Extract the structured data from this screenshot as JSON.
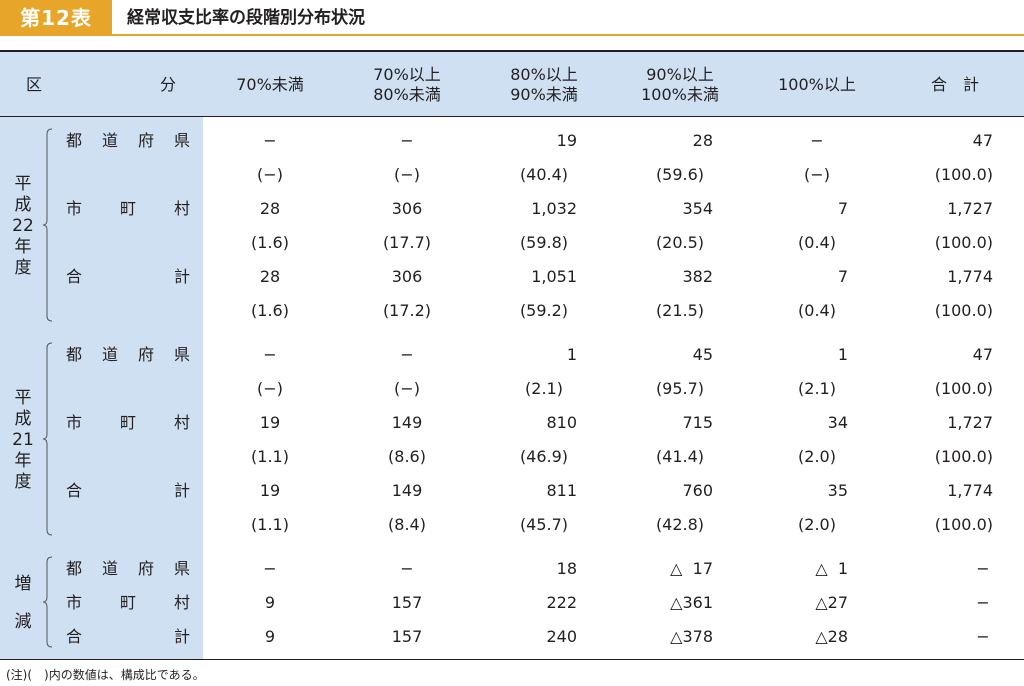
{
  "title": {
    "badge": "第12表",
    "text": "経常収支比率の段階別分布状況"
  },
  "header": {
    "ku": "区",
    "bun": "分",
    "columns": [
      [
        "70%未満"
      ],
      [
        "70%以上",
        "80%未満"
      ],
      [
        "80%以上",
        "90%未満"
      ],
      [
        "90%以上",
        "100%未満"
      ],
      [
        "100%以上"
      ],
      [
        "合　計"
      ]
    ]
  },
  "groups": [
    {
      "label": [
        "平",
        "成",
        "22",
        "年",
        "度"
      ],
      "rows": [
        {
          "label": [
            "都",
            "道",
            "府",
            "県"
          ],
          "values": [
            "−",
            "−",
            "19",
            "28",
            "−",
            "47"
          ]
        },
        {
          "label": [],
          "values": [
            "(−)",
            "(−)",
            "(40.4)",
            "(59.6)",
            "(−)",
            "(100.0)"
          ]
        },
        {
          "label": [
            "市",
            "町",
            "村"
          ],
          "values": [
            "28",
            "306",
            "1,032",
            "354",
            "7",
            "1,727"
          ]
        },
        {
          "label": [],
          "values": [
            "(1.6)",
            "(17.7)",
            "(59.8)",
            "(20.5)",
            "(0.4)",
            "(100.0)"
          ]
        },
        {
          "label": [
            "合",
            "計"
          ],
          "values": [
            "28",
            "306",
            "1,051",
            "382",
            "7",
            "1,774"
          ]
        },
        {
          "label": [],
          "values": [
            "(1.6)",
            "(17.2)",
            "(59.2)",
            "(21.5)",
            "(0.4)",
            "(100.0)"
          ]
        }
      ]
    },
    {
      "label": [
        "平",
        "成",
        "21",
        "年",
        "度"
      ],
      "rows": [
        {
          "label": [
            "都",
            "道",
            "府",
            "県"
          ],
          "values": [
            "−",
            "−",
            "1",
            "45",
            "1",
            "47"
          ]
        },
        {
          "label": [],
          "values": [
            "(−)",
            "(−)",
            "(2.1)",
            "(95.7)",
            "(2.1)",
            "(100.0)"
          ]
        },
        {
          "label": [
            "市",
            "町",
            "村"
          ],
          "values": [
            "19",
            "149",
            "810",
            "715",
            "34",
            "1,727"
          ]
        },
        {
          "label": [],
          "values": [
            "(1.1)",
            "(8.6)",
            "(46.9)",
            "(41.4)",
            "(2.0)",
            "(100.0)"
          ]
        },
        {
          "label": [
            "合",
            "計"
          ],
          "values": [
            "19",
            "149",
            "811",
            "760",
            "35",
            "1,774"
          ]
        },
        {
          "label": [],
          "values": [
            "(1.1)",
            "(8.4)",
            "(45.7)",
            "(42.8)",
            "(2.0)",
            "(100.0)"
          ]
        }
      ]
    },
    {
      "label": [
        "増",
        "減"
      ],
      "rows": [
        {
          "label": [
            "都",
            "道",
            "府",
            "県"
          ],
          "values": [
            "−",
            "−",
            "18",
            "△  17",
            "△  1",
            "−"
          ]
        },
        {
          "label": [
            "市",
            "町",
            "村"
          ],
          "values": [
            "9",
            "157",
            "222",
            "△361",
            "△27",
            "−"
          ]
        },
        {
          "label": [
            "合",
            "計"
          ],
          "values": [
            "9",
            "157",
            "240",
            "△378",
            "△28",
            "−"
          ]
        }
      ]
    }
  ],
  "note": "(注)(　)内の数値は、構成比である。"
}
